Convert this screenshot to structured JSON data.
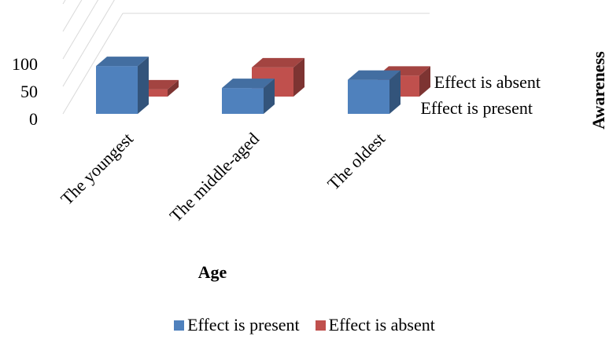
{
  "chart_data": {
    "type": "bar",
    "title": "",
    "xlabel": "Age",
    "ylabel": "Awareness",
    "categories": [
      "The youngest",
      "The middle-aged",
      "The oldest"
    ],
    "series": [
      {
        "name": "Effect is present",
        "values": [
          87,
          47,
          62
        ],
        "color": "#4f81bd"
      },
      {
        "name": "Effect is absent",
        "values": [
          13,
          53,
          38
        ],
        "color": "#c0504d"
      }
    ],
    "yticks": [
      "0",
      "50",
      "100"
    ],
    "ylim": [
      0,
      200
    ],
    "grid": true,
    "legend_position": "bottom"
  }
}
